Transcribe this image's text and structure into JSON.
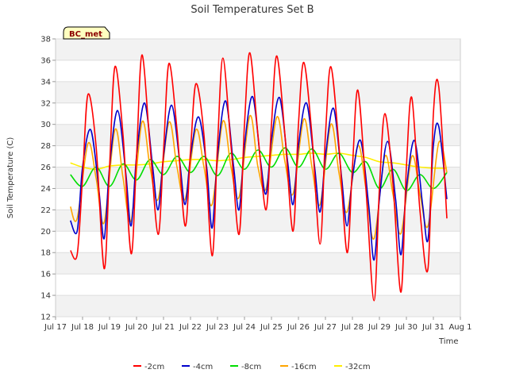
{
  "chart_data": {
    "type": "line",
    "title": "Soil Temperatures Set B",
    "xlabel": "Time",
    "ylabel": "Soil Temperature (C)",
    "badge": "BC_met",
    "ylim": [
      12,
      38
    ],
    "yticks": [
      12,
      14,
      16,
      18,
      20,
      22,
      24,
      26,
      28,
      30,
      32,
      34,
      36,
      38
    ],
    "xlim": [
      0,
      15
    ],
    "xticks": [
      {
        "pos": 0,
        "label": "Jul 17"
      },
      {
        "pos": 1,
        "label": "Jul 18"
      },
      {
        "pos": 2,
        "label": "Jul 19"
      },
      {
        "pos": 3,
        "label": "Jul 20"
      },
      {
        "pos": 4,
        "label": "Jul 21"
      },
      {
        "pos": 5,
        "label": "Jul 22"
      },
      {
        "pos": 6,
        "label": "Jul 23"
      },
      {
        "pos": 7,
        "label": "Jul 24"
      },
      {
        "pos": 8,
        "label": "Jul 25"
      },
      {
        "pos": 9,
        "label": "Jul 26"
      },
      {
        "pos": 10,
        "label": "Jul 27"
      },
      {
        "pos": 11,
        "label": "Jul 28"
      },
      {
        "pos": 12,
        "label": "Jul 29"
      },
      {
        "pos": 13,
        "label": "Jul 30"
      },
      {
        "pos": 14,
        "label": "Jul 31"
      },
      {
        "pos": 15,
        "label": "Aug 1"
      }
    ],
    "grid": "horizontal bands",
    "legend_position": "bottom",
    "series": [
      {
        "name": "-2cm",
        "color": "#ff0000",
        "x": [
          0.55,
          0.8,
          1.0,
          1.2,
          1.5,
          1.8,
          2.0,
          2.2,
          2.5,
          2.8,
          3.0,
          3.2,
          3.5,
          3.8,
          4.0,
          4.2,
          4.5,
          4.8,
          5.0,
          5.2,
          5.5,
          5.8,
          6.0,
          6.2,
          6.5,
          6.8,
          7.0,
          7.2,
          7.5,
          7.8,
          8.0,
          8.2,
          8.5,
          8.8,
          9.0,
          9.2,
          9.5,
          9.8,
          10.0,
          10.2,
          10.5,
          10.8,
          11.0,
          11.2,
          11.5,
          11.8,
          12.0,
          12.2,
          12.5,
          12.8,
          13.0,
          13.2,
          13.5,
          13.8,
          14.0,
          14.2,
          14.5
        ],
        "y": [
          18.2,
          17.8,
          25.0,
          32.8,
          28.0,
          16.5,
          26.0,
          35.4,
          29.0,
          17.9,
          27.0,
          36.5,
          28.0,
          19.7,
          27.5,
          35.7,
          29.5,
          20.5,
          27.5,
          33.8,
          29.0,
          17.7,
          28.0,
          36.2,
          28.0,
          19.7,
          30.0,
          36.7,
          29.0,
          22.0,
          30.0,
          36.4,
          29.0,
          20.0,
          30.0,
          35.8,
          29.0,
          18.8,
          29.0,
          35.4,
          28.0,
          18.0,
          26.0,
          33.2,
          24.0,
          13.5,
          24.0,
          31.0,
          24.5,
          14.3,
          26.0,
          32.5,
          22.0,
          16.5,
          31.0,
          33.5,
          21.2
        ]
      },
      {
        "name": "-4cm",
        "color": "#0000cc",
        "x": [
          0.55,
          0.8,
          1.0,
          1.3,
          1.6,
          1.8,
          2.0,
          2.3,
          2.6,
          2.8,
          3.0,
          3.3,
          3.6,
          3.8,
          4.0,
          4.3,
          4.6,
          4.8,
          5.0,
          5.3,
          5.6,
          5.8,
          6.0,
          6.3,
          6.6,
          6.8,
          7.0,
          7.3,
          7.6,
          7.8,
          8.0,
          8.3,
          8.6,
          8.8,
          9.0,
          9.3,
          9.6,
          9.8,
          10.0,
          10.3,
          10.6,
          10.8,
          11.0,
          11.3,
          11.6,
          11.8,
          12.0,
          12.3,
          12.6,
          12.8,
          13.0,
          13.3,
          13.6,
          13.8,
          14.0,
          14.2,
          14.5
        ],
        "y": [
          21.0,
          20.0,
          26.0,
          29.5,
          24.0,
          19.3,
          26.0,
          31.3,
          25.5,
          20.5,
          27.0,
          32.0,
          26.0,
          22.0,
          27.0,
          31.8,
          26.5,
          22.5,
          27.0,
          30.7,
          26.0,
          20.3,
          27.0,
          32.2,
          26.0,
          22.0,
          28.0,
          32.6,
          26.5,
          23.5,
          28.5,
          32.5,
          26.5,
          22.5,
          28.0,
          32.0,
          26.0,
          21.8,
          27.0,
          31.5,
          25.0,
          20.5,
          25.0,
          28.5,
          22.5,
          17.3,
          23.0,
          28.4,
          23.0,
          17.8,
          24.0,
          28.5,
          22.5,
          19.2,
          28.0,
          29.8,
          23.0
        ]
      },
      {
        "name": "-8cm",
        "color": "#00dd00",
        "x": [
          0.55,
          1.0,
          1.5,
          2.0,
          2.5,
          3.0,
          3.5,
          4.0,
          4.5,
          5.0,
          5.5,
          6.0,
          6.5,
          7.0,
          7.5,
          8.0,
          8.5,
          9.0,
          9.5,
          10.0,
          10.5,
          11.0,
          11.5,
          12.0,
          12.5,
          13.0,
          13.5,
          14.0,
          14.5
        ],
        "y": [
          25.3,
          24.2,
          26.0,
          24.2,
          26.3,
          24.8,
          26.7,
          25.3,
          27.0,
          25.5,
          27.0,
          25.2,
          27.3,
          25.8,
          27.6,
          26.0,
          27.8,
          26.0,
          27.7,
          25.8,
          27.3,
          25.5,
          26.5,
          24.0,
          25.8,
          23.8,
          25.3,
          24.0,
          25.5
        ]
      },
      {
        "name": "-16cm",
        "color": "#ffa500",
        "x": [
          0.55,
          0.8,
          1.2,
          1.5,
          1.8,
          2.2,
          2.5,
          2.8,
          3.2,
          3.5,
          3.8,
          4.2,
          4.5,
          4.8,
          5.2,
          5.5,
          5.8,
          6.2,
          6.5,
          6.8,
          7.2,
          7.5,
          7.8,
          8.2,
          8.5,
          8.8,
          9.2,
          9.5,
          9.8,
          10.2,
          10.5,
          10.8,
          11.2,
          11.5,
          11.8,
          12.2,
          12.5,
          12.8,
          13.2,
          13.5,
          13.8,
          14.2,
          14.5
        ],
        "y": [
          22.3,
          21.2,
          28.2,
          25.0,
          20.8,
          29.5,
          25.0,
          21.0,
          30.2,
          26.0,
          23.0,
          30.2,
          26.0,
          23.0,
          29.5,
          26.0,
          22.5,
          30.3,
          26.0,
          23.2,
          30.8,
          26.0,
          24.0,
          30.7,
          26.5,
          23.5,
          30.5,
          26.0,
          22.5,
          30.0,
          25.5,
          21.8,
          28.0,
          24.0,
          19.3,
          27.0,
          23.5,
          19.8,
          27.0,
          23.5,
          20.5,
          28.3,
          25.5
        ]
      },
      {
        "name": "-32cm",
        "color": "#ffee00",
        "x": [
          0.55,
          1.0,
          1.5,
          2.0,
          2.5,
          3.0,
          3.5,
          4.0,
          4.5,
          5.0,
          5.5,
          6.0,
          6.5,
          7.0,
          7.5,
          8.0,
          8.5,
          9.0,
          9.5,
          10.0,
          10.5,
          11.0,
          11.5,
          12.0,
          12.5,
          13.0,
          13.5,
          14.0,
          14.5
        ],
        "y": [
          26.4,
          26.0,
          25.8,
          26.1,
          26.2,
          26.2,
          26.3,
          26.5,
          26.6,
          26.7,
          26.7,
          26.6,
          26.7,
          26.9,
          27.0,
          27.1,
          27.2,
          27.2,
          27.3,
          27.2,
          27.3,
          27.1,
          26.9,
          26.5,
          26.4,
          26.2,
          26.0,
          25.9,
          25.9
        ]
      }
    ]
  }
}
